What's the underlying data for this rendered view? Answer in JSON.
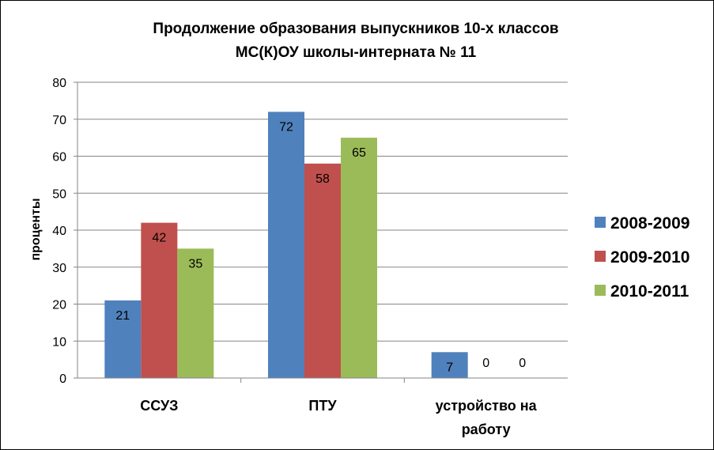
{
  "chart_data": {
    "type": "bar",
    "title": [
      "Продолжение образования выпускников  10-х классов",
      "МС(К)ОУ школы-интерната № 11"
    ],
    "ylabel": "проценты",
    "xlabel": "",
    "ylim": [
      0,
      80
    ],
    "yticks": [
      "0",
      "10",
      "20",
      "30",
      "40",
      "50",
      "60",
      "70",
      "80"
    ],
    "categories": [
      [
        "ССУЗ"
      ],
      [
        "ПТУ"
      ],
      [
        "устройство на",
        "работу"
      ]
    ],
    "series": [
      {
        "name": "2008-2009",
        "color": "#4f81bd",
        "values": [
          21,
          72,
          7
        ]
      },
      {
        "name": "2009-2010",
        "color": "#c0504d",
        "values": [
          42,
          58,
          0
        ]
      },
      {
        "name": "2010-2011",
        "color": "#9bbb59",
        "values": [
          35,
          65,
          0
        ]
      }
    ],
    "grid": true,
    "legend": "right"
  }
}
